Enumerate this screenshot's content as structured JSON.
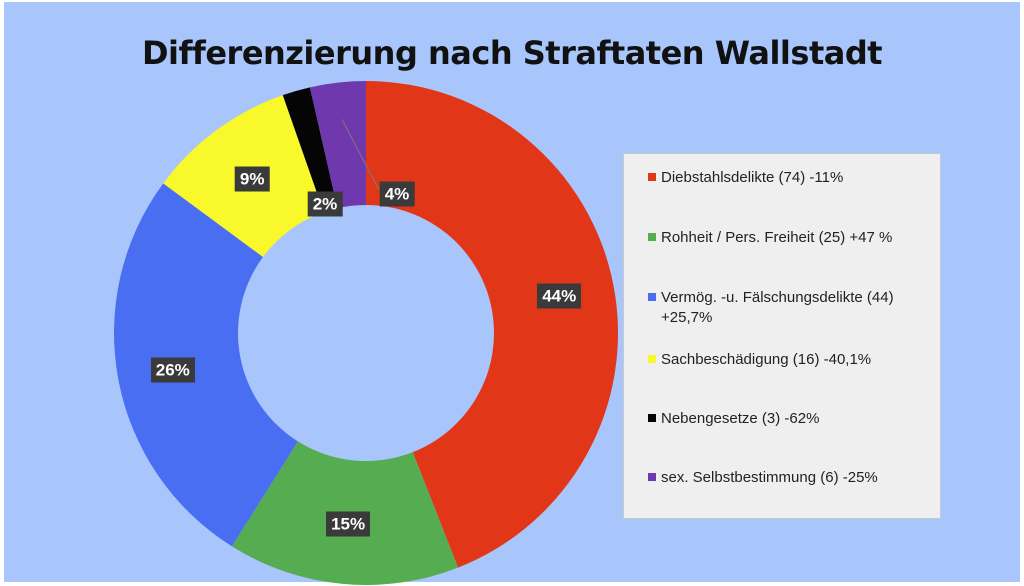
{
  "chart_data": {
    "type": "donut",
    "title": "Differenzierung nach Straftaten Wallstadt",
    "series": [
      {
        "name": "Diebstahlsdelikte",
        "count": 74,
        "percent": 44,
        "change": "-11%",
        "label": "44%",
        "legend": "Diebstahlsdelikte (74)  -11%",
        "color": "#e23618"
      },
      {
        "name": "Rohheit / Pers. Freiheit",
        "count": 25,
        "percent": 15,
        "change": "+47 %",
        "label": "15%",
        "legend": "Rohheit / Pers. Freiheit (25)  +47 %",
        "color": "#56ad51"
      },
      {
        "name": "Vermög. -u. Fälschungsdelikte",
        "count": 44,
        "percent": 26,
        "change": "+25,7%",
        "label": "26%",
        "legend": "Vermög. -u. Fälschungsdelikte (44)",
        "legend_cont": "+25,7%",
        "color": "#4a6ef2"
      },
      {
        "name": "Sachbeschädigung",
        "count": 16,
        "percent": 9,
        "change": "-40,1%",
        "label": "9%",
        "legend": "Sachbeschädigung (16) -40,1%",
        "color": "#f8f82a"
      },
      {
        "name": "Nebengesetze",
        "count": 3,
        "percent": 2,
        "change": "-62%",
        "label": "2%",
        "legend": "Nebengesetze (3)  -62%",
        "color": "#050505"
      },
      {
        "name": "sex. Selbstbestimmung",
        "count": 6,
        "percent": 4,
        "change": "-25%",
        "label": "4%",
        "legend": "sex. Selbstbestimmung (6)   -25%",
        "color": "#6f38ad"
      }
    ]
  }
}
